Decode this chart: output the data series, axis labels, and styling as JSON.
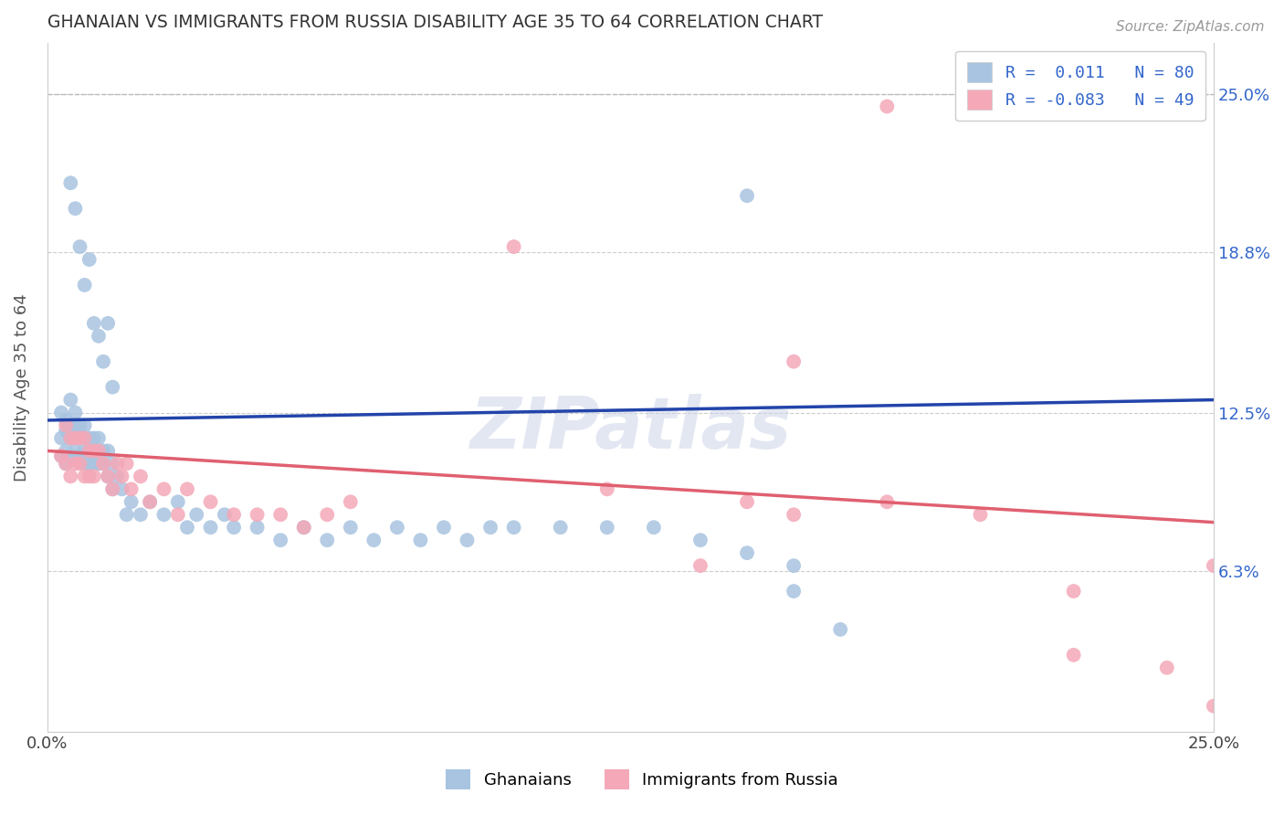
{
  "title": "GHANAIAN VS IMMIGRANTS FROM RUSSIA DISABILITY AGE 35 TO 64 CORRELATION CHART",
  "source_text": "Source: ZipAtlas.com",
  "ylabel": "Disability Age 35 to 64",
  "xlim": [
    0.0,
    0.25
  ],
  "ylim": [
    0.0,
    0.27
  ],
  "xtick_positions": [
    0.0,
    0.25
  ],
  "xtick_labels": [
    "0.0%",
    "25.0%"
  ],
  "ytick_values": [
    0.063,
    0.125,
    0.188,
    0.25
  ],
  "ytick_labels": [
    "6.3%",
    "12.5%",
    "18.8%",
    "25.0%"
  ],
  "legend_text_blue": "R =  0.011   N = 80",
  "legend_text_pink": "R = -0.083   N = 49",
  "legend_label_blue": "Ghanaians",
  "legend_label_pink": "Immigrants from Russia",
  "blue_color": "#a8c4e0",
  "pink_color": "#f4a8b8",
  "blue_line_color": "#2244aa",
  "pink_line_color": "#e06070",
  "watermark": "ZIPatlas",
  "blue_line_y0": 0.122,
  "blue_line_y1": 0.13,
  "pink_line_y0": 0.11,
  "pink_line_y1": 0.082,
  "blue_scatter_x": [
    0.003,
    0.003,
    0.003,
    0.004,
    0.004,
    0.004,
    0.004,
    0.005,
    0.005,
    0.005,
    0.005,
    0.006,
    0.006,
    0.006,
    0.006,
    0.007,
    0.007,
    0.007,
    0.008,
    0.008,
    0.008,
    0.008,
    0.009,
    0.009,
    0.009,
    0.01,
    0.01,
    0.01,
    0.011,
    0.011,
    0.012,
    0.012,
    0.013,
    0.013,
    0.014,
    0.014,
    0.015,
    0.016,
    0.017,
    0.018,
    0.02,
    0.022,
    0.025,
    0.028,
    0.03,
    0.032,
    0.035,
    0.038,
    0.04,
    0.045,
    0.05,
    0.055,
    0.06,
    0.065,
    0.07,
    0.075,
    0.08,
    0.085,
    0.09,
    0.095,
    0.1,
    0.11,
    0.12,
    0.13,
    0.14,
    0.15,
    0.16,
    0.005,
    0.006,
    0.007,
    0.008,
    0.009,
    0.01,
    0.011,
    0.012,
    0.013,
    0.014,
    0.15,
    0.16,
    0.17
  ],
  "blue_scatter_y": [
    0.125,
    0.115,
    0.108,
    0.122,
    0.118,
    0.11,
    0.105,
    0.13,
    0.12,
    0.115,
    0.108,
    0.125,
    0.12,
    0.115,
    0.11,
    0.12,
    0.115,
    0.108,
    0.12,
    0.115,
    0.11,
    0.105,
    0.115,
    0.11,
    0.105,
    0.115,
    0.11,
    0.105,
    0.115,
    0.105,
    0.11,
    0.105,
    0.11,
    0.1,
    0.105,
    0.095,
    0.1,
    0.095,
    0.085,
    0.09,
    0.085,
    0.09,
    0.085,
    0.09,
    0.08,
    0.085,
    0.08,
    0.085,
    0.08,
    0.08,
    0.075,
    0.08,
    0.075,
    0.08,
    0.075,
    0.08,
    0.075,
    0.08,
    0.075,
    0.08,
    0.08,
    0.08,
    0.08,
    0.08,
    0.075,
    0.07,
    0.065,
    0.215,
    0.205,
    0.19,
    0.175,
    0.185,
    0.16,
    0.155,
    0.145,
    0.16,
    0.135,
    0.21,
    0.055,
    0.04
  ],
  "pink_scatter_x": [
    0.003,
    0.004,
    0.004,
    0.005,
    0.005,
    0.006,
    0.006,
    0.007,
    0.007,
    0.008,
    0.008,
    0.009,
    0.009,
    0.01,
    0.01,
    0.011,
    0.012,
    0.013,
    0.014,
    0.015,
    0.016,
    0.017,
    0.018,
    0.02,
    0.022,
    0.025,
    0.028,
    0.03,
    0.035,
    0.04,
    0.045,
    0.05,
    0.055,
    0.06,
    0.065,
    0.1,
    0.12,
    0.14,
    0.15,
    0.16,
    0.18,
    0.2,
    0.22,
    0.24,
    0.25,
    0.16,
    0.18,
    0.22,
    0.25
  ],
  "pink_scatter_y": [
    0.108,
    0.12,
    0.105,
    0.115,
    0.1,
    0.115,
    0.105,
    0.115,
    0.105,
    0.115,
    0.1,
    0.11,
    0.1,
    0.11,
    0.1,
    0.11,
    0.105,
    0.1,
    0.095,
    0.105,
    0.1,
    0.105,
    0.095,
    0.1,
    0.09,
    0.095,
    0.085,
    0.095,
    0.09,
    0.085,
    0.085,
    0.085,
    0.08,
    0.085,
    0.09,
    0.19,
    0.095,
    0.065,
    0.09,
    0.085,
    0.09,
    0.085,
    0.03,
    0.025,
    0.065,
    0.145,
    0.245,
    0.055,
    0.01
  ]
}
